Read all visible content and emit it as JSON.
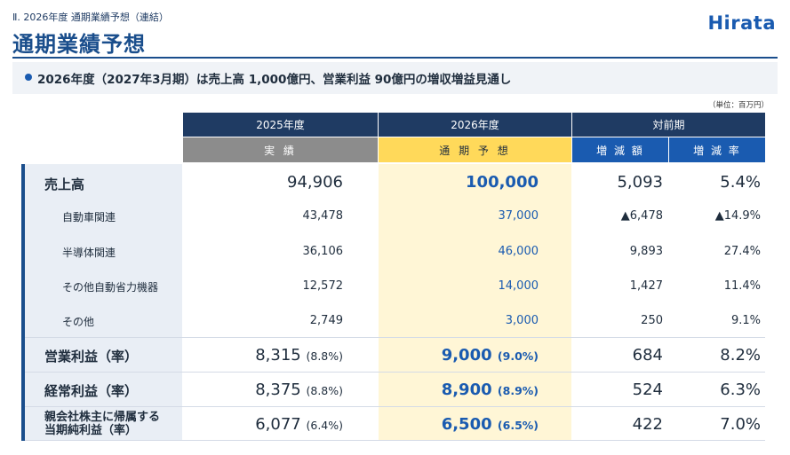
{
  "header": {
    "section": "Ⅱ. 2026年度 通期業績予想（連結）",
    "title": "通期業績予想",
    "logo": "Hirata"
  },
  "summary": "2026年度（2027年3月期）は売上高 1,000億円、営業利益 90億円の増収増益見通し",
  "unit": "（単位：百万円）",
  "table": {
    "col_groups": [
      "2025年度",
      "2026年度",
      "対前期"
    ],
    "sub_headers": [
      "実 績",
      "通 期 予 想",
      "増 減 額",
      "増 減 率"
    ],
    "rows": [
      {
        "label": "売上高",
        "actual": "94,906",
        "forecast": "100,000",
        "diff": "5,093",
        "rate": "5.4%"
      },
      {
        "label": "自動車関連",
        "actual": "43,478",
        "forecast": "37,000",
        "diff": "▲6,478",
        "rate": "▲14.9%"
      },
      {
        "label": "半導体関連",
        "actual": "36,106",
        "forecast": "46,000",
        "diff": "9,893",
        "rate": "27.4%"
      },
      {
        "label": "その他自動省力機器",
        "actual": "12,572",
        "forecast": "14,000",
        "diff": "1,427",
        "rate": "11.4%"
      },
      {
        "label": "その他",
        "actual": "2,749",
        "forecast": "3,000",
        "diff": "250",
        "rate": "9.1%"
      },
      {
        "label": "営業利益（率）",
        "actual": "8,315",
        "actual_pct": "(8.8%)",
        "forecast": "9,000",
        "forecast_pct": "(9.0%)",
        "diff": "684",
        "rate": "8.2%"
      },
      {
        "label": "経常利益（率）",
        "actual": "8,375",
        "actual_pct": "(8.8%)",
        "forecast": "8,900",
        "forecast_pct": "(8.9%)",
        "diff": "524",
        "rate": "6.3%"
      },
      {
        "label_line1": "親会社株主に帰属する",
        "label_line2": "当期純利益（率）",
        "actual": "6,077",
        "actual_pct": "(6.4%)",
        "forecast": "6,500",
        "forecast_pct": "(6.5%)",
        "diff": "422",
        "rate": "7.0%"
      }
    ]
  }
}
